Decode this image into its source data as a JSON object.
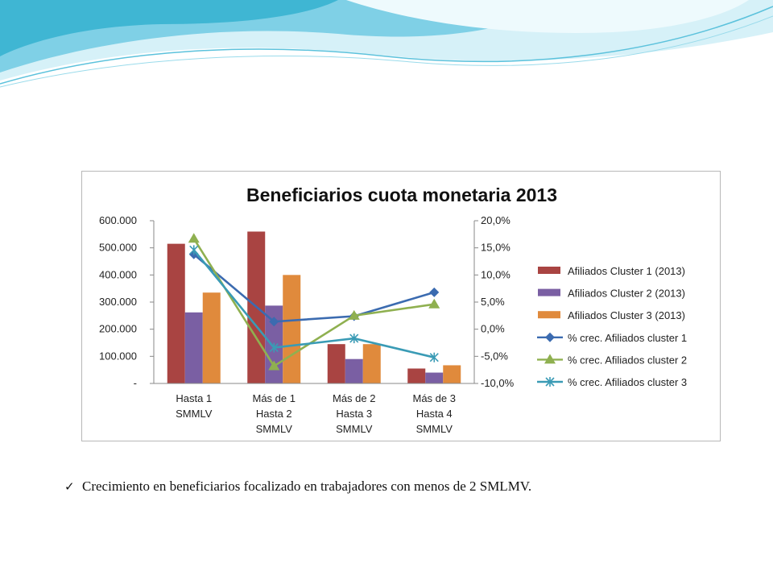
{
  "slide": {
    "bullet_text": "Crecimiento en beneficiarios focalizado en trabajadores con menos de 2 SMLMV.",
    "bullet_icon": "check-icon"
  },
  "colors": {
    "bar1": "#A94442",
    "bar2": "#7A5FA3",
    "bar3": "#E08A3C",
    "line1": "#3B6BB0",
    "line2": "#8FB050",
    "line3": "#3A9BB5",
    "wave_light": "#BFE9F3",
    "wave_dark": "#3FB6D3"
  },
  "chart_data": {
    "type": "bar",
    "title": "Beneficiarios cuota monetaria 2013",
    "categories": [
      [
        "Hasta 1",
        "SMMLV"
      ],
      [
        "Más de 1",
        "Hasta 2",
        "SMMLV"
      ],
      [
        "Más de 2",
        "Hasta 3",
        "SMMLV"
      ],
      [
        "Más de 3",
        "Hasta 4",
        "SMMLV"
      ]
    ],
    "y_left": {
      "min": 0,
      "max": 600000,
      "ticks": [
        "-",
        "100.000",
        "200.000",
        "300.000",
        "400.000",
        "500.000",
        "600.000"
      ]
    },
    "y_right": {
      "min": -10,
      "max": 20,
      "ticks": [
        "-10,0%",
        "-5,0%",
        "0,0%",
        "5,0%",
        "10,0%",
        "15,0%",
        "20,0%"
      ]
    },
    "legend_position": "right",
    "grid": false,
    "series": [
      {
        "name": "Afiliados Cluster 1 (2013)",
        "kind": "bar",
        "axis": "left",
        "values": [
          515000,
          560000,
          145000,
          55000
        ]
      },
      {
        "name": "Afiliados Cluster 2  (2013)",
        "kind": "bar",
        "axis": "left",
        "values": [
          262000,
          287000,
          90000,
          40000
        ]
      },
      {
        "name": "Afiliados Cluster 3 (2013)",
        "kind": "bar",
        "axis": "left",
        "values": [
          335000,
          400000,
          145000,
          67000
        ]
      },
      {
        "name": "% crec. Afiliados cluster 1",
        "kind": "line",
        "marker": "diamond",
        "axis": "right",
        "values": [
          13.8,
          1.4,
          2.4,
          6.8
        ]
      },
      {
        "name": "% crec. Afiliados cluster 2",
        "kind": "line",
        "marker": "triangle",
        "axis": "right",
        "values": [
          16.7,
          -6.8,
          2.5,
          4.6
        ]
      },
      {
        "name": "% crec. Afiliados cluster 3",
        "kind": "line",
        "marker": "star",
        "axis": "right",
        "values": [
          14.6,
          -3.4,
          -1.7,
          -5.2
        ]
      }
    ]
  }
}
